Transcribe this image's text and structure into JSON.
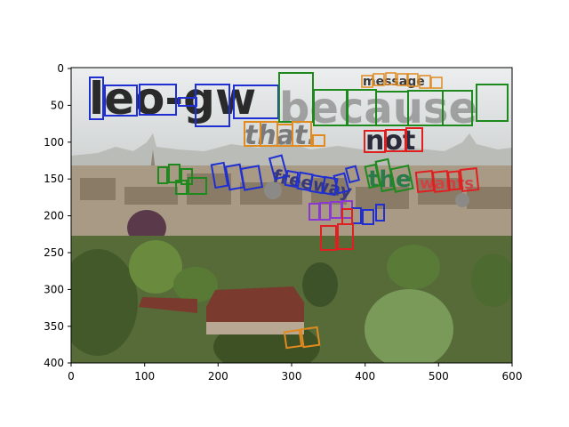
{
  "plot": {
    "x_ticks": [
      "0",
      "100",
      "200",
      "300",
      "400",
      "500",
      "600"
    ],
    "y_ticks": [
      "0",
      "50",
      "100",
      "150",
      "200",
      "250",
      "300",
      "350",
      "400"
    ],
    "xlim": [
      0,
      600
    ],
    "ylim": [
      0,
      400
    ],
    "y_inverted": true
  },
  "scene": {
    "sky_color": "#e6e8e9",
    "haze_color": "#c9ccc8",
    "building_color": "#a89580",
    "roof_color": "#8a4a3a",
    "tree_color": "#4f6a34"
  },
  "overlay_words": [
    {
      "text": "leo-gw",
      "color": "#2a2a2a",
      "box_color": "#1f2fd1"
    },
    {
      "text": "because",
      "color": "#8a8a8a",
      "box_color": "#1e8a1e"
    },
    {
      "text": "message",
      "color": "#3a3a3a",
      "box_color": "#e08a20"
    },
    {
      "text": "that.",
      "color": "#7a7a7a",
      "box_color": "#e08a20"
    },
    {
      "text": "not",
      "color": "#2a2a3a",
      "box_color": "#e02020"
    },
    {
      "text": "freeway",
      "color": "#3a3a7a",
      "box_color": "#1f2fd1"
    },
    {
      "text": "the",
      "color": "#2a7a4a",
      "box_color": "#1e8a1e"
    },
    {
      "text": "wants",
      "color": "#cc4444",
      "box_color": "#e02020"
    }
  ]
}
